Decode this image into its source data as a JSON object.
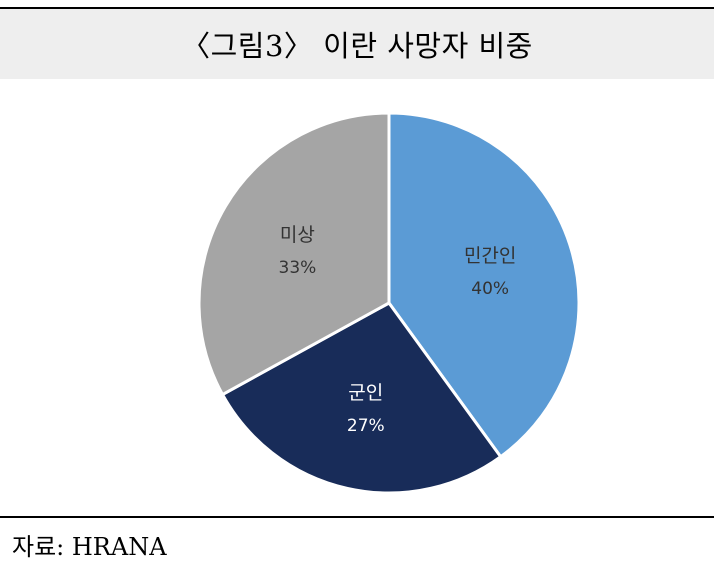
{
  "title": "〈그림3〉 이란 사망자 비중",
  "source": "자료: HRANA",
  "chart_data": {
    "type": "pie",
    "title": "〈그림3〉 이란 사망자 비중",
    "start": "12 o'clock",
    "direction": "clockwise",
    "slices": [
      {
        "label": "민간인",
        "value": 40,
        "value_label": "40%",
        "color": "#5b9bd5",
        "text_color": "#333333"
      },
      {
        "label": "군인",
        "value": 27,
        "value_label": "27%",
        "color": "#182c59",
        "text_color": "#ffffff"
      },
      {
        "label": "미상",
        "value": 33,
        "value_label": "33%",
        "color": "#a5a5a5",
        "text_color": "#333333"
      }
    ],
    "legend": "none",
    "data_labels": "inside"
  }
}
